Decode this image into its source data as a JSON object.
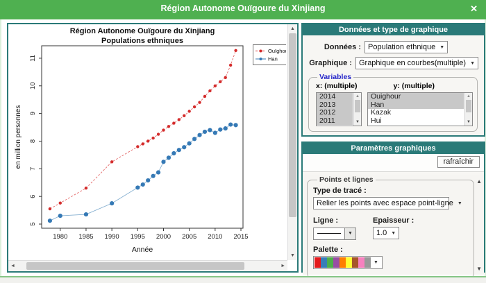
{
  "titlebar": {
    "title": "Région Autonome Ouïgoure du Xinjiang"
  },
  "icons": {
    "close": "✕",
    "dropdown_arrow": "▼",
    "scroll_up": "▲",
    "scroll_down": "▼",
    "scroll_left": "◄",
    "scroll_right": "►"
  },
  "colors": {
    "titlebar_green": "#4fb050",
    "header_teal": "#2a7a78",
    "selected_item_bg": "#c8c8c8",
    "ouighour_red": "#d42c2c",
    "han_blue": "#3579b5"
  },
  "chart_data": {
    "type": "line",
    "title_line1": "Région Autonome Ouïgoure du Xinjiang",
    "title_line2": "Populations ethniques",
    "xlabel": "Année",
    "ylabel": "en million personnes",
    "xlim": [
      1976.4,
      2015.4
    ],
    "ylim": [
      4.85,
      11.45
    ],
    "xticks": [
      1980,
      1985,
      1990,
      1995,
      2000,
      2005,
      2010,
      2015
    ],
    "yticks": [
      5,
      6,
      7,
      8,
      9,
      10,
      11
    ],
    "grid": false,
    "legend_position": "top-right",
    "x": [
      1978,
      1980,
      1985,
      1990,
      1995,
      1996,
      1997,
      1998,
      1999,
      2000,
      2001,
      2002,
      2003,
      2004,
      2005,
      2006,
      2007,
      2008,
      2009,
      2010,
      2011,
      2012,
      2013,
      2014
    ],
    "series": [
      {
        "name": "Ouïghour",
        "color": "#d42c2c",
        "line_color": "#e46a6a",
        "dash": "3,2",
        "marker_radius": 2.2,
        "values": [
          5.55,
          5.76,
          6.3,
          7.25,
          7.8,
          7.9,
          8.0,
          8.11,
          8.25,
          8.4,
          8.53,
          8.65,
          8.78,
          8.92,
          9.08,
          9.24,
          9.4,
          9.62,
          9.82,
          10.0,
          10.15,
          10.3,
          10.75,
          11.28
        ]
      },
      {
        "name": "Han",
        "color": "#3579b5",
        "line_color": "#85afd0",
        "dash": "",
        "marker_radius": 3.1,
        "values": [
          5.12,
          5.3,
          5.35,
          5.75,
          6.32,
          6.43,
          6.58,
          6.74,
          6.87,
          7.25,
          7.4,
          7.56,
          7.68,
          7.78,
          7.92,
          8.08,
          8.22,
          8.34,
          8.4,
          8.3,
          8.42,
          8.46,
          8.6,
          8.58
        ]
      }
    ]
  },
  "data_panel": {
    "header": "Données et type de graphique",
    "rows": [
      {
        "label": "Données :",
        "value": "Population ethnique"
      },
      {
        "label": "Graphique :",
        "value": "Graphique en courbes(multiple)"
      }
    ],
    "variables": {
      "legend": "Variables",
      "x_label": "x: (multiple)",
      "y_label": "y: (multiple)",
      "x_items": [
        {
          "label": "2014",
          "selected": true
        },
        {
          "label": "2013",
          "selected": true
        },
        {
          "label": "2012",
          "selected": true
        },
        {
          "label": "2011",
          "selected": true
        }
      ],
      "y_items": [
        {
          "label": "Ouighour",
          "selected": true
        },
        {
          "label": "Han",
          "selected": true
        },
        {
          "label": "Kazak",
          "selected": false
        },
        {
          "label": "Hui",
          "selected": false
        }
      ]
    }
  },
  "params_panel": {
    "header": "Paramètres graphiques",
    "refresh_label": "rafraîchir",
    "points_lines": {
      "legend": "Points et lignes",
      "trace_label": "Type de tracé :",
      "trace_value": "Relier les points avec espace point-ligne",
      "line_label": "Ligne :",
      "thickness_label": "Epaisseur :",
      "thickness_value": "1.0",
      "palette_label": "Palette :",
      "palette_colors": [
        "#E41A1C",
        "#377EB8",
        "#4DAF4A",
        "#984EA3",
        "#FF7F00",
        "#FFFF33",
        "#A65628",
        "#F781BF",
        "#999999"
      ]
    }
  }
}
